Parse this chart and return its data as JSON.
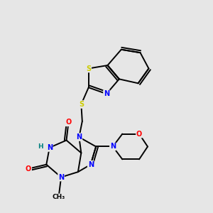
{
  "bg_color": "#e6e6e6",
  "bond_color": "#000000",
  "bond_width": 1.4,
  "fig_size": [
    3.0,
    3.0
  ],
  "dpi": 100,
  "atom_colors": {
    "N": "#0000ff",
    "O": "#ff0000",
    "S": "#cccc00",
    "H": "#008080",
    "C": "#000000"
  }
}
